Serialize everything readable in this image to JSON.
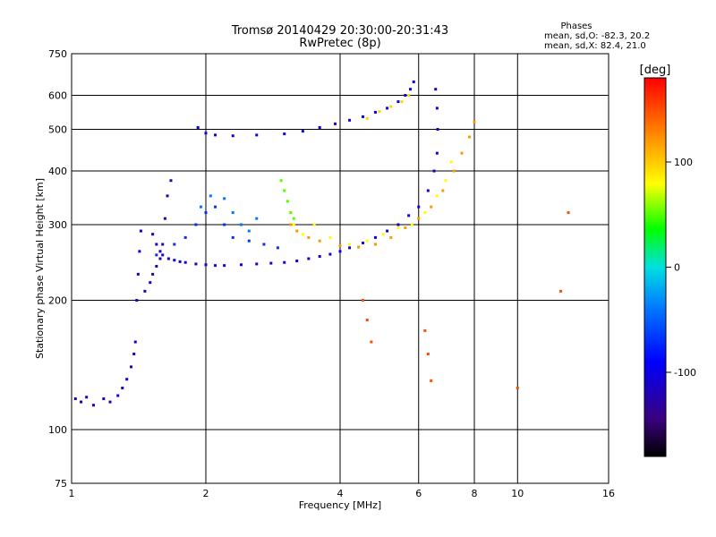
{
  "chart_data": {
    "type": "scatter",
    "title": "Tromsø 20140429 20:30:00-20:31:43",
    "subtitle": "RwPretec (8p)",
    "stats": {
      "heading": "Phases",
      "line_o": "mean, sd,O: -82.3, 20.2",
      "line_x": "mean, sd,X:  82.4, 21.0"
    },
    "xlabel": "Frequency [MHz]",
    "ylabel": "Stationary phase Virtual Height [km]",
    "x_scale": "log",
    "y_scale": "log",
    "xlim": [
      1,
      16
    ],
    "ylim": [
      75,
      750
    ],
    "x_ticks": [
      1,
      2,
      4,
      6,
      8,
      10,
      16
    ],
    "x_ticklabels": [
      "1",
      "2",
      "4",
      "6",
      "8",
      "10",
      "16"
    ],
    "y_ticks": [
      75,
      100,
      200,
      300,
      400,
      500,
      600,
      750
    ],
    "y_ticklabels": [
      "75",
      "100",
      "200",
      "300",
      "400",
      "500",
      "600",
      "750"
    ],
    "grid": true,
    "colorbar": {
      "label": "[deg]",
      "range": [
        -180,
        180
      ],
      "ticks": [
        100,
        0,
        -100
      ],
      "ticklabels": [
        "100",
        "0",
        "-100"
      ]
    },
    "series": [
      {
        "phase": -110,
        "points": [
          [
            1.02,
            118
          ],
          [
            1.05,
            116
          ],
          [
            1.08,
            119
          ],
          [
            1.12,
            114
          ],
          [
            1.18,
            118
          ],
          [
            1.22,
            116
          ],
          [
            1.27,
            120
          ],
          [
            1.3,
            125
          ],
          [
            1.33,
            131
          ],
          [
            1.36,
            140
          ],
          [
            1.38,
            150
          ],
          [
            1.39,
            160
          ],
          [
            1.4,
            200
          ],
          [
            1.41,
            230
          ],
          [
            1.42,
            260
          ],
          [
            1.43,
            290
          ],
          [
            1.52,
            285
          ],
          [
            1.55,
            270
          ],
          [
            1.58,
            260
          ],
          [
            1.6,
            255
          ],
          [
            1.65,
            250
          ],
          [
            1.7,
            248
          ],
          [
            1.75,
            246
          ],
          [
            1.8,
            245
          ],
          [
            1.9,
            243
          ],
          [
            2.0,
            242
          ],
          [
            2.1,
            241
          ],
          [
            2.2,
            241
          ],
          [
            2.4,
            242
          ],
          [
            2.6,
            243
          ],
          [
            2.8,
            244
          ],
          [
            3.0,
            245
          ],
          [
            3.2,
            247
          ],
          [
            3.4,
            250
          ],
          [
            3.6,
            253
          ],
          [
            3.8,
            256
          ],
          [
            4.0,
            260
          ],
          [
            4.2,
            265
          ],
          [
            4.5,
            272
          ],
          [
            4.8,
            280
          ],
          [
            5.1,
            290
          ],
          [
            5.4,
            300
          ],
          [
            5.7,
            315
          ],
          [
            6.0,
            330
          ],
          [
            6.3,
            360
          ],
          [
            6.5,
            400
          ],
          [
            6.6,
            440
          ],
          [
            6.62,
            500
          ],
          [
            6.6,
            560
          ],
          [
            6.55,
            620
          ]
        ]
      },
      {
        "phase": -100,
        "points": [
          [
            1.92,
            505
          ],
          [
            2.0,
            490
          ],
          [
            2.1,
            485
          ],
          [
            2.3,
            483
          ],
          [
            2.6,
            485
          ],
          [
            3.0,
            488
          ],
          [
            3.3,
            495
          ],
          [
            3.6,
            505
          ],
          [
            3.9,
            515
          ],
          [
            4.2,
            525
          ],
          [
            4.5,
            535
          ],
          [
            4.8,
            548
          ],
          [
            5.1,
            560
          ],
          [
            5.4,
            580
          ],
          [
            5.6,
            600
          ],
          [
            5.75,
            620
          ],
          [
            5.85,
            645
          ]
        ]
      },
      {
        "phase": -130,
        "points": [
          [
            1.46,
            210
          ],
          [
            1.5,
            220
          ],
          [
            1.52,
            230
          ],
          [
            1.55,
            240
          ],
          [
            1.58,
            250
          ],
          [
            1.6,
            270
          ],
          [
            1.62,
            310
          ],
          [
            1.64,
            350
          ],
          [
            1.67,
            380
          ]
        ]
      },
      {
        "phase": -70,
        "points": [
          [
            1.55,
            255
          ],
          [
            1.7,
            270
          ],
          [
            1.8,
            280
          ],
          [
            1.9,
            300
          ],
          [
            2.0,
            320
          ],
          [
            2.1,
            330
          ],
          [
            2.2,
            300
          ],
          [
            2.3,
            280
          ],
          [
            2.5,
            275
          ],
          [
            2.7,
            270
          ],
          [
            2.9,
            265
          ]
        ]
      },
      {
        "phase": -40,
        "points": [
          [
            1.95,
            330
          ],
          [
            2.05,
            350
          ],
          [
            2.2,
            345
          ],
          [
            2.3,
            320
          ],
          [
            2.4,
            300
          ],
          [
            2.5,
            290
          ],
          [
            2.6,
            310
          ]
        ]
      },
      {
        "phase": 80,
        "points": [
          [
            3.0,
            360
          ],
          [
            3.05,
            340
          ],
          [
            3.1,
            320
          ],
          [
            3.15,
            300
          ],
          [
            3.2,
            290
          ],
          [
            3.3,
            285
          ],
          [
            3.5,
            300
          ],
          [
            3.8,
            280
          ],
          [
            4.2,
            270
          ],
          [
            4.6,
            275
          ],
          [
            5.0,
            285
          ],
          [
            5.4,
            295
          ],
          [
            5.8,
            300
          ],
          [
            6.2,
            320
          ],
          [
            6.6,
            350
          ],
          [
            6.9,
            380
          ],
          [
            7.1,
            420
          ]
        ]
      },
      {
        "phase": 50,
        "points": [
          [
            2.95,
            380
          ],
          [
            3.0,
            360
          ],
          [
            3.05,
            340
          ],
          [
            3.1,
            320
          ],
          [
            3.15,
            310
          ]
        ]
      },
      {
        "phase": 120,
        "points": [
          [
            3.1,
            300
          ],
          [
            3.2,
            290
          ],
          [
            3.4,
            280
          ],
          [
            3.6,
            275
          ],
          [
            4.0,
            268
          ],
          [
            4.4,
            266
          ],
          [
            4.8,
            270
          ],
          [
            5.2,
            280
          ],
          [
            5.6,
            295
          ],
          [
            6.0,
            310
          ],
          [
            6.4,
            330
          ],
          [
            6.8,
            360
          ],
          [
            7.2,
            400
          ],
          [
            7.5,
            440
          ],
          [
            7.8,
            480
          ],
          [
            8.0,
            520
          ]
        ]
      },
      {
        "phase": 95,
        "points": [
          [
            4.6,
            530
          ],
          [
            4.9,
            550
          ],
          [
            5.2,
            565
          ],
          [
            5.5,
            580
          ],
          [
            5.7,
            600
          ]
        ]
      },
      {
        "phase": 150,
        "points": [
          [
            4.5,
            200
          ],
          [
            4.6,
            180
          ],
          [
            4.7,
            160
          ],
          [
            6.2,
            170
          ],
          [
            6.3,
            150
          ],
          [
            6.4,
            130
          ],
          [
            10.0,
            125
          ],
          [
            12.5,
            210
          ],
          [
            13.0,
            320
          ]
        ]
      }
    ]
  }
}
